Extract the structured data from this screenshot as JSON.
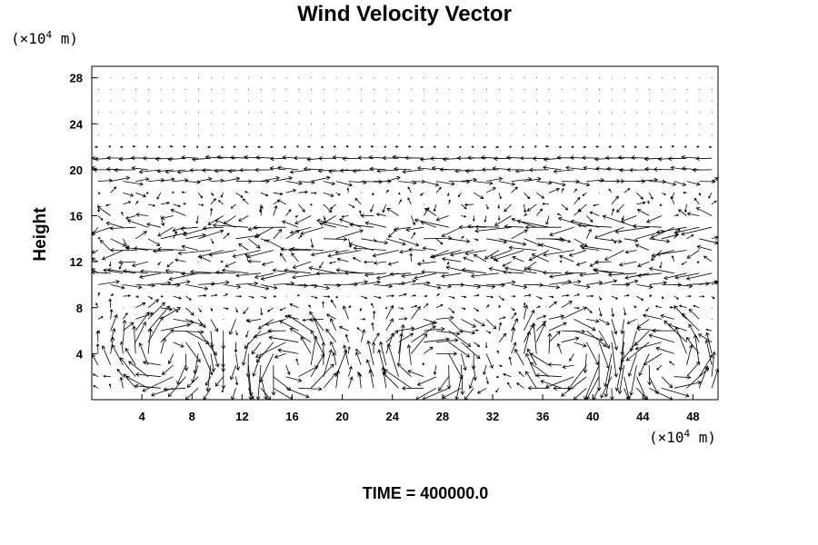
{
  "chart_data": {
    "type": "vector-field",
    "title": "Wind Velocity Vector",
    "ylabel": "Height",
    "xlabel": "",
    "y_unit_prefix": "(×10",
    "y_unit_exp": "4",
    "y_unit_suffix": " m)",
    "x_unit_prefix": "(×10",
    "x_unit_exp": "4",
    "x_unit_suffix": " m)",
    "xlim": [
      0,
      50
    ],
    "ylim": [
      0,
      29
    ],
    "x_ticks": [
      "4",
      "8",
      "12",
      "16",
      "20",
      "24",
      "28",
      "32",
      "36",
      "40",
      "44",
      "48"
    ],
    "x_tick_values": [
      4,
      8,
      12,
      16,
      20,
      24,
      28,
      32,
      36,
      40,
      44,
      48
    ],
    "y_ticks": [
      "4",
      "8",
      "12",
      "16",
      "20",
      "24",
      "28"
    ],
    "y_tick_values": [
      4,
      8,
      12,
      16,
      20,
      24,
      28
    ],
    "grid": false,
    "grid_x_spacing": 1.0,
    "grid_y_spacing": 1.0,
    "jets": [
      {
        "height": 21.0,
        "direction": "westward",
        "strength": 0.7
      },
      {
        "height": 20.0,
        "direction": "westward",
        "strength": 1.0
      },
      {
        "height": 19.0,
        "direction": "eastward",
        "strength": 1.0
      },
      {
        "height": 15.0,
        "direction": "westward",
        "strength": 1.4
      },
      {
        "height": 14.0,
        "direction": "eastward",
        "strength": 1.2
      },
      {
        "height": 13.0,
        "direction": "westward",
        "strength": 1.3
      },
      {
        "height": 11.0,
        "direction": "westward",
        "strength": 1.5
      },
      {
        "height": 10.0,
        "direction": "eastward",
        "strength": 1.2
      }
    ],
    "lower_cells": [
      {
        "x_center": 6,
        "y_center": 4,
        "rotation": "clockwise"
      },
      {
        "x_center": 16,
        "y_center": 3,
        "rotation": "counterclockwise"
      },
      {
        "x_center": 27,
        "y_center": 3,
        "rotation": "clockwise"
      },
      {
        "x_center": 38,
        "y_center": 4,
        "rotation": "clockwise"
      },
      {
        "x_center": 46,
        "y_center": 3,
        "rotation": "counterclockwise"
      }
    ]
  },
  "footer": {
    "time_label": "TIME = 400000.0"
  }
}
